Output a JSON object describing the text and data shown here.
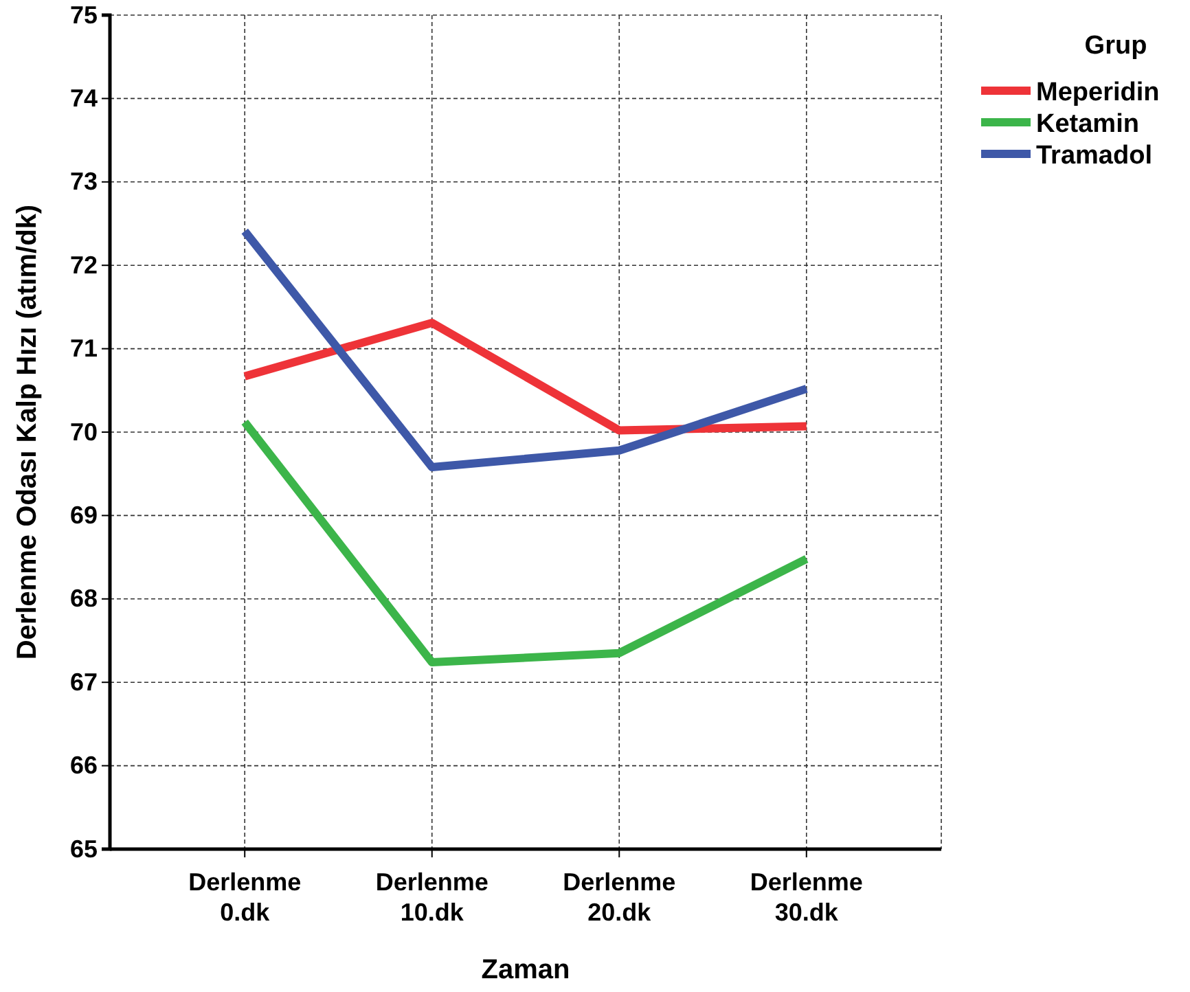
{
  "chart_data": {
    "type": "line",
    "xlabel": "Zaman",
    "ylabel": "Derlenme Odası Kalp Hızı (atım/dk)",
    "legend_title": "Grup",
    "legend": "top right",
    "grid": true,
    "line_style": "solid",
    "marker": "none",
    "categories": [
      "Derlenme 0.dk",
      "Derlenme 10.dk",
      "Derlenme 20.dk",
      "Derlenme 30.dk"
    ],
    "ylim": [
      65,
      75
    ],
    "yticks": [
      65,
      66,
      67,
      68,
      69,
      70,
      71,
      72,
      73,
      74,
      75
    ],
    "series": [
      {
        "name": "Meperidin",
        "color": "#ee3338",
        "values": [
          70.67,
          71.31,
          70.02,
          70.07
        ]
      },
      {
        "name": "Ketamin",
        "color": "#3cb54a",
        "values": [
          70.12,
          67.24,
          67.35,
          68.48
        ]
      },
      {
        "name": "Tramadol",
        "color": "#3e58a8",
        "values": [
          72.41,
          69.58,
          69.78,
          70.52
        ]
      }
    ]
  }
}
